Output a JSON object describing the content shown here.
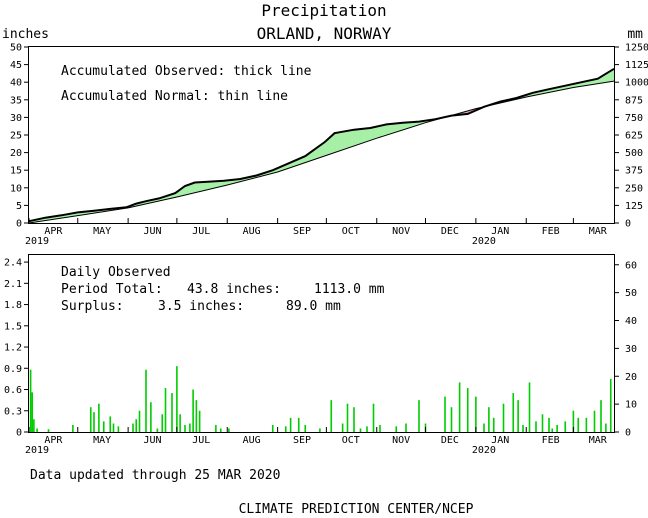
{
  "header": {
    "title": "Precipitation",
    "subtitle": "ORLAND, NORWAY",
    "left_unit": "inches",
    "right_unit": "mm"
  },
  "footer": {
    "updated": "Data updated through 25 MAR 2020",
    "credit": "CLIMATE PREDICTION CENTER/NCEP"
  },
  "colors": {
    "surplus_fill": "#a6f0a6",
    "deficit_fill": "#d8a8a8",
    "bar_color": "#00cc00",
    "line_color": "#000000"
  },
  "chart_data": [
    {
      "type": "area",
      "notes": [
        "Accumulated Observed: thick line",
        "Accumulated Normal: thin line"
      ],
      "x_ticks": [
        "APR",
        "MAY",
        "JUN",
        "JUL",
        "AUG",
        "SEP",
        "OCT",
        "NOV",
        "DEC",
        "JAN",
        "FEB",
        "MAR"
      ],
      "x_tick_years": {
        "APR": "2019",
        "JAN": "2020"
      },
      "x_range_days": [
        0,
        360
      ],
      "y_left": {
        "label": "inches",
        "ticks": [
          0,
          5,
          10,
          15,
          20,
          25,
          30,
          35,
          40,
          45,
          50
        ],
        "range": [
          0,
          50
        ]
      },
      "y_right": {
        "label": "mm",
        "ticks": [
          0,
          125,
          250,
          375,
          500,
          625,
          750,
          875,
          1000,
          1125,
          1250
        ],
        "range": [
          0,
          1250
        ]
      },
      "series": [
        {
          "name": "Accumulated Observed",
          "x_days": [
            0,
            10,
            20,
            30,
            40,
            50,
            60,
            66,
            72,
            80,
            90,
            96,
            102,
            110,
            120,
            130,
            140,
            150,
            160,
            170,
            176,
            182,
            188,
            200,
            210,
            220,
            230,
            240,
            250,
            260,
            270,
            280,
            290,
            300,
            310,
            320,
            330,
            340,
            350,
            360
          ],
          "values": [
            0.5,
            1.5,
            2.2,
            3,
            3.5,
            4,
            4.5,
            5.5,
            6.2,
            7,
            8.5,
            10.5,
            11.5,
            11.7,
            12,
            12.5,
            13.5,
            15,
            17,
            19,
            21,
            23,
            25.5,
            26.5,
            27,
            28,
            28.5,
            28.8,
            29.5,
            30.5,
            31,
            33,
            34.5,
            35.5,
            37,
            38,
            39,
            40,
            41,
            43.8
          ]
        },
        {
          "name": "Accumulated Normal",
          "x_days": [
            0,
            30,
            61,
            91,
            122,
            153,
            183,
            214,
            244,
            275,
            306,
            335,
            360
          ],
          "values": [
            0,
            2.1,
            4.3,
            7.4,
            10.8,
            14.5,
            19.2,
            24.1,
            28.5,
            32.5,
            35.8,
            38.5,
            40.3
          ]
        }
      ]
    },
    {
      "type": "bar",
      "notes": [
        "Daily Observed"
      ],
      "period_total_label": "Period Total:",
      "period_total_in": "43.8 inches:",
      "period_total_mm": "1113.0 mm",
      "surplus_label": "Surplus:",
      "surplus_in": "3.5 inches:",
      "surplus_mm": "89.0 mm",
      "x_ticks": [
        "APR",
        "MAY",
        "JUN",
        "JUL",
        "AUG",
        "SEP",
        "OCT",
        "NOV",
        "DEC",
        "JAN",
        "FEB",
        "MAR"
      ],
      "x_tick_years": {
        "APR": "2019",
        "JAN": "2020"
      },
      "y_left": {
        "ticks": [
          "0",
          "0.3",
          "0.6",
          "0.9",
          "1.2",
          "1.5",
          "1.8",
          "2.1",
          "2.4"
        ],
        "range": [
          0,
          2.5
        ]
      },
      "y_right": {
        "ticks": [
          "0",
          "10",
          "20",
          "30",
          "40",
          "50",
          "60"
        ],
        "range": [
          0,
          63.5
        ]
      },
      "series": [
        {
          "name": "Daily Observed",
          "x_days": [
            1,
            2,
            3,
            5,
            12,
            27,
            38,
            40,
            43,
            46,
            50,
            52,
            55,
            64,
            66,
            68,
            72,
            75,
            79,
            82,
            84,
            88,
            91,
            93,
            96,
            99,
            101,
            103,
            105,
            115,
            118,
            123,
            150,
            158,
            161,
            166,
            170,
            179,
            186,
            193,
            196,
            200,
            204,
            208,
            212,
            216,
            226,
            232,
            240,
            244,
            256,
            260,
            265,
            270,
            275,
            280,
            283,
            286,
            292,
            298,
            301,
            304,
            308,
            312,
            316,
            320,
            322,
            325,
            330,
            335,
            338,
            343,
            348,
            352,
            355,
            358
          ],
          "values": [
            0.88,
            0.56,
            0.18,
            0.05,
            0.04,
            0.1,
            0.35,
            0.28,
            0.4,
            0.15,
            0.22,
            0.12,
            0.08,
            0.12,
            0.18,
            0.3,
            0.88,
            0.42,
            0.05,
            0.25,
            0.62,
            0.55,
            0.93,
            0.25,
            0.1,
            0.12,
            0.6,
            0.45,
            0.3,
            0.1,
            0.05,
            0.05,
            0.1,
            0.08,
            0.2,
            0.2,
            0.1,
            0.05,
            0.45,
            0.12,
            0.4,
            0.35,
            0.05,
            0.08,
            0.4,
            0.1,
            0.08,
            0.12,
            0.45,
            0.12,
            0.5,
            0.35,
            0.7,
            0.62,
            0.5,
            0.12,
            0.35,
            0.2,
            0.4,
            0.55,
            0.45,
            0.1,
            0.7,
            0.15,
            0.25,
            0.2,
            0.05,
            0.1,
            0.15,
            0.3,
            0.2,
            0.2,
            0.3,
            0.45,
            0.12,
            0.75
          ]
        }
      ]
    }
  ]
}
